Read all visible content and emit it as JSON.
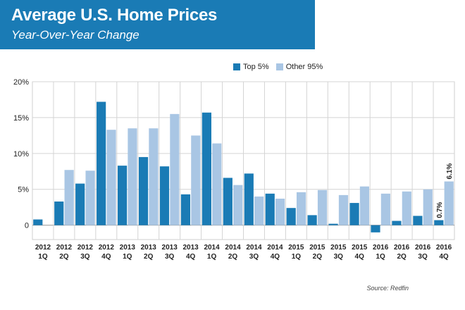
{
  "header": {
    "title": "Average U.S. Home Prices",
    "subtitle": "Year-Over-Year Change"
  },
  "source": "Source: Redfin",
  "colors": {
    "banner": "#1a7bb5",
    "top5": "#1a7bb5",
    "other95": "#a9c6e4",
    "grid": "#d4d4d4"
  },
  "chart_data": {
    "type": "bar",
    "title": "Average U.S. Home Prices",
    "subtitle": "Year-Over-Year Change",
    "legend_position": "top",
    "grid": true,
    "ylim": [
      -2,
      20
    ],
    "yticks": [
      0,
      5,
      10,
      15,
      20
    ],
    "ytick_labels": [
      "0",
      "5%",
      "10%",
      "15%",
      "20%"
    ],
    "categories": [
      {
        "year": "2012",
        "quarter": "1Q"
      },
      {
        "year": "2012",
        "quarter": "2Q"
      },
      {
        "year": "2012",
        "quarter": "3Q"
      },
      {
        "year": "2012",
        "quarter": "4Q"
      },
      {
        "year": "2013",
        "quarter": "1Q"
      },
      {
        "year": "2013",
        "quarter": "2Q"
      },
      {
        "year": "2013",
        "quarter": "3Q"
      },
      {
        "year": "2013",
        "quarter": "4Q"
      },
      {
        "year": "2014",
        "quarter": "1Q"
      },
      {
        "year": "2014",
        "quarter": "2Q"
      },
      {
        "year": "2014",
        "quarter": "3Q"
      },
      {
        "year": "2014",
        "quarter": "4Q"
      },
      {
        "year": "2015",
        "quarter": "1Q"
      },
      {
        "year": "2015",
        "quarter": "2Q"
      },
      {
        "year": "2015",
        "quarter": "3Q"
      },
      {
        "year": "2015",
        "quarter": "4Q"
      },
      {
        "year": "2016",
        "quarter": "1Q"
      },
      {
        "year": "2016",
        "quarter": "2Q"
      },
      {
        "year": "2016",
        "quarter": "3Q"
      },
      {
        "year": "2016",
        "quarter": "4Q"
      }
    ],
    "series": [
      {
        "name": "Top 5%",
        "color": "#1a7bb5",
        "values": [
          0.8,
          3.3,
          5.8,
          17.2,
          8.3,
          9.5,
          8.2,
          4.3,
          15.7,
          6.6,
          7.2,
          4.4,
          2.4,
          1.4,
          0.2,
          3.1,
          -1.0,
          0.6,
          1.3,
          0.7
        ]
      },
      {
        "name": "Other 95%",
        "color": "#a9c6e4",
        "values": [
          0.0,
          7.7,
          7.6,
          13.3,
          13.5,
          13.5,
          15.5,
          12.5,
          11.4,
          5.6,
          4.0,
          3.7,
          4.6,
          4.9,
          4.2,
          5.4,
          4.4,
          4.7,
          5.0,
          6.1
        ]
      }
    ],
    "annotations": [
      {
        "series": "Top 5%",
        "index": 19,
        "text": "0.7%"
      },
      {
        "series": "Other 95%",
        "index": 19,
        "text": "6.1%"
      }
    ]
  }
}
